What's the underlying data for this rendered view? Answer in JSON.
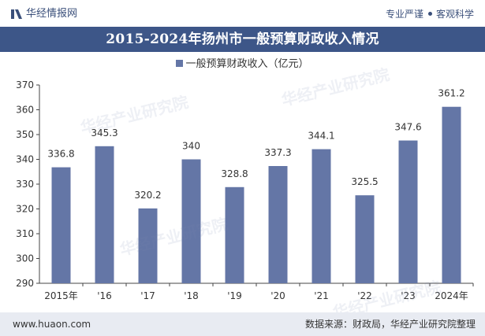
{
  "header": {
    "brand": "华经情报网",
    "tagline_left": "专业严谨",
    "tagline_right": "客观科学"
  },
  "title": "2015-2024年扬州市一般预算财政收入情况",
  "footer": {
    "url": "www.huaon.com",
    "source": "数据来源：财政局，华经产业研究院整理"
  },
  "watermark": "华经产业研究院",
  "colors": {
    "bar": "#6476a6",
    "title_band": "#3d5688",
    "footer_band": "#e8ebf2"
  },
  "chart_data": {
    "type": "bar",
    "categories": [
      "2015年",
      "'16",
      "'17",
      "'18",
      "'19",
      "'20",
      "'21",
      "'22",
      "'23",
      "2024年"
    ],
    "series": [
      {
        "name": "一般预算财政收入（亿元）",
        "values": [
          336.8,
          345.3,
          320.2,
          340,
          328.8,
          337.3,
          344.1,
          325.5,
          347.6,
          361.2
        ]
      }
    ],
    "value_labels": [
      "336.8",
      "345.3",
      "320.2",
      "340",
      "328.8",
      "337.3",
      "344.1",
      "325.5",
      "347.6",
      "361.2"
    ],
    "ylim": [
      290,
      370
    ],
    "yticks": [
      290,
      300,
      310,
      320,
      330,
      340,
      350,
      360,
      370
    ],
    "grid": false,
    "legend_position": "top-center"
  }
}
